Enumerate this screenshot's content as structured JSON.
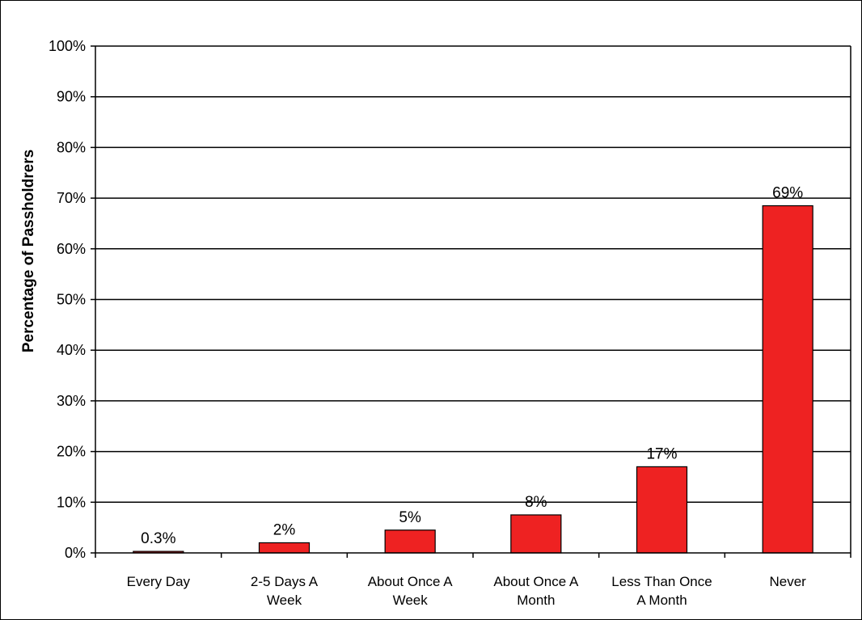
{
  "chart_data": {
    "type": "bar",
    "title": "",
    "xlabel": "",
    "ylabel": "Percentage of Passholdrers",
    "ylim": [
      0,
      100
    ],
    "yticks": [
      "0%",
      "10%",
      "20%",
      "30%",
      "40%",
      "50%",
      "60%",
      "70%",
      "80%",
      "90%",
      "100%"
    ],
    "grid": true,
    "legend": "none",
    "categories": [
      [
        "Every Day"
      ],
      [
        "2-5 Days A",
        "Week"
      ],
      [
        "About Once A",
        "Week"
      ],
      [
        "About Once A",
        "Month"
      ],
      [
        "Less Than Once",
        "A Month"
      ],
      [
        "Never"
      ]
    ],
    "values": [
      0.3,
      2,
      4.5,
      7.5,
      17,
      68.5
    ],
    "data_labels": [
      "0.3%",
      "2%",
      "5%",
      "8%",
      "17%",
      "69%"
    ],
    "colors": {
      "bar": "#ee2222",
      "bar_stroke": "#000000",
      "grid": "#000000",
      "axis": "#000000"
    }
  }
}
